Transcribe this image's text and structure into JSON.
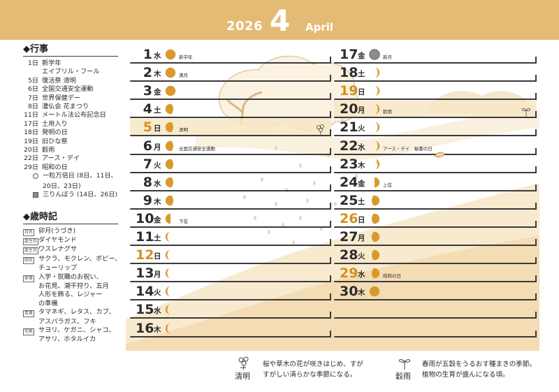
{
  "header": {
    "year": "2026",
    "month": "4",
    "month_en": "April"
  },
  "events": {
    "title": "◆行事",
    "items": [
      {
        "d": "1日",
        "t": "新学年"
      },
      {
        "d": "",
        "t": "エイプリル・フール"
      },
      {
        "d": "5日",
        "t": "復活祭 清明"
      },
      {
        "d": "6日",
        "t": "全国交通安全運動"
      },
      {
        "d": "7日",
        "t": "世界保健デー"
      },
      {
        "d": "8日",
        "t": "灌仏会 花まつり"
      },
      {
        "d": "11日",
        "t": "メートル法公布記念日"
      },
      {
        "d": "17日",
        "t": "土用入り"
      },
      {
        "d": "18日",
        "t": "発明の日"
      },
      {
        "d": "19日",
        "t": "旧ひな祭"
      },
      {
        "d": "20日",
        "t": "穀雨"
      },
      {
        "d": "22日",
        "t": "アース・デイ"
      },
      {
        "d": "29日",
        "t": "昭和の日"
      }
    ],
    "legend": [
      {
        "mark": "circle",
        "lines": [
          "一粒万倍日 (8日、11日、",
          "20日、23日)"
        ]
      },
      {
        "mark": "square",
        "lines": [
          "三りんぼう (14日、26日)"
        ]
      }
    ]
  },
  "saijiki": {
    "title": "◆歳時記",
    "items": [
      {
        "tag": "月名",
        "lines": [
          "卯月(うづき)"
        ]
      },
      {
        "tag": "誕生石",
        "lines": [
          "ダイヤモンド"
        ]
      },
      {
        "tag": "誕生花",
        "lines": [
          "ワスレナグサ"
        ]
      },
      {
        "tag": "開花",
        "lines": [
          "サクラ、モクレン、ポピー、",
          "チューリップ"
        ]
      },
      {
        "tag": "家事",
        "lines": [
          "入学・就職のお祝い、",
          "お花見、潮干狩り、五月",
          "人形を飾る、レジャー",
          "の準備"
        ]
      },
      {
        "tag": "青果",
        "lines": [
          "タマネギ、レタス、カブ、",
          "アスパラガス、フキ"
        ]
      },
      {
        "tag": "旬魚",
        "lines": [
          "サヨリ、ケガニ、シャコ、",
          "アサリ、ホタルイカ"
        ]
      }
    ]
  },
  "days": [
    {
      "n": "1",
      "w": "水",
      "moon": "full",
      "note": "新学年",
      "hol": false
    },
    {
      "n": "2",
      "w": "木",
      "moon": "full",
      "note": "満月",
      "hol": false
    },
    {
      "n": "3",
      "w": "金",
      "moon": "full",
      "note": "",
      "hol": false
    },
    {
      "n": "4",
      "w": "土",
      "moon": "gib-wane",
      "note": "",
      "hol": false
    },
    {
      "n": "5",
      "w": "日",
      "moon": "gib-wane",
      "note": "清明",
      "hol": true
    },
    {
      "n": "6",
      "w": "月",
      "moon": "gib-wane",
      "note": "全国交通安全運動",
      "hol": false
    },
    {
      "n": "7",
      "w": "火",
      "moon": "gib-wane",
      "note": "",
      "hol": false
    },
    {
      "n": "8",
      "w": "水",
      "moon": "gib-wane",
      "note": "",
      "hol": false
    },
    {
      "n": "9",
      "w": "木",
      "moon": "gib-wane",
      "note": "",
      "hol": false
    },
    {
      "n": "10",
      "w": "金",
      "moon": "half-wane",
      "note": "下弦",
      "hol": false
    },
    {
      "n": "11",
      "w": "土",
      "moon": "cres-wane",
      "note": "",
      "hol": false
    },
    {
      "n": "12",
      "w": "日",
      "moon": "cres-wane",
      "note": "",
      "hol": true
    },
    {
      "n": "13",
      "w": "月",
      "moon": "cres-wane",
      "note": "",
      "hol": false
    },
    {
      "n": "14",
      "w": "火",
      "moon": "cres-wane",
      "note": "",
      "hol": false
    },
    {
      "n": "15",
      "w": "水",
      "moon": "cres-wane",
      "note": "",
      "hol": false
    },
    {
      "n": "16",
      "w": "木",
      "moon": "cres-wane",
      "note": "",
      "hol": false
    },
    {
      "n": "17",
      "w": "金",
      "moon": "new",
      "note": "新月",
      "hol": false
    },
    {
      "n": "18",
      "w": "土",
      "moon": "cres-wax",
      "note": "",
      "hol": false
    },
    {
      "n": "19",
      "w": "日",
      "moon": "cres-wax",
      "note": "",
      "hol": true
    },
    {
      "n": "20",
      "w": "月",
      "moon": "cres-wax",
      "note": "穀雨",
      "hol": false
    },
    {
      "n": "21",
      "w": "火",
      "moon": "cres-wax",
      "note": "",
      "hol": false
    },
    {
      "n": "22",
      "w": "水",
      "moon": "cres-wax",
      "note": "アース・デイ　秘書の日",
      "hol": false
    },
    {
      "n": "23",
      "w": "木",
      "moon": "cres-wax",
      "note": "",
      "hol": false
    },
    {
      "n": "24",
      "w": "金",
      "moon": "half-wax",
      "note": "上弦",
      "hol": false
    },
    {
      "n": "25",
      "w": "土",
      "moon": "gib-wax",
      "note": "",
      "hol": false
    },
    {
      "n": "26",
      "w": "日",
      "moon": "gib-wax",
      "note": "",
      "hol": true
    },
    {
      "n": "27",
      "w": "月",
      "moon": "gib-wax",
      "note": "",
      "hol": false
    },
    {
      "n": "28",
      "w": "火",
      "moon": "gib-wax",
      "note": "",
      "hol": false
    },
    {
      "n": "29",
      "w": "水",
      "moon": "gib-wax",
      "note": "昭和の日",
      "hol": true
    },
    {
      "n": "30",
      "w": "木",
      "moon": "full",
      "note": "",
      "hol": false
    }
  ],
  "footer": {
    "seimei": {
      "name": "清明",
      "lines": [
        "桜や草木の花が咲きはじめ、すが",
        "すがしい清らかな季節になる。"
      ]
    },
    "kokuu": {
      "name": "穀雨",
      "lines": [
        "春雨が五穀をうるおす種まきの季節。",
        "植物の生育が盛んになる頃。"
      ]
    }
  },
  "colors": {
    "header": "#e3bb74",
    "moon": "#d99a2b",
    "holiday": "#d4901e"
  }
}
